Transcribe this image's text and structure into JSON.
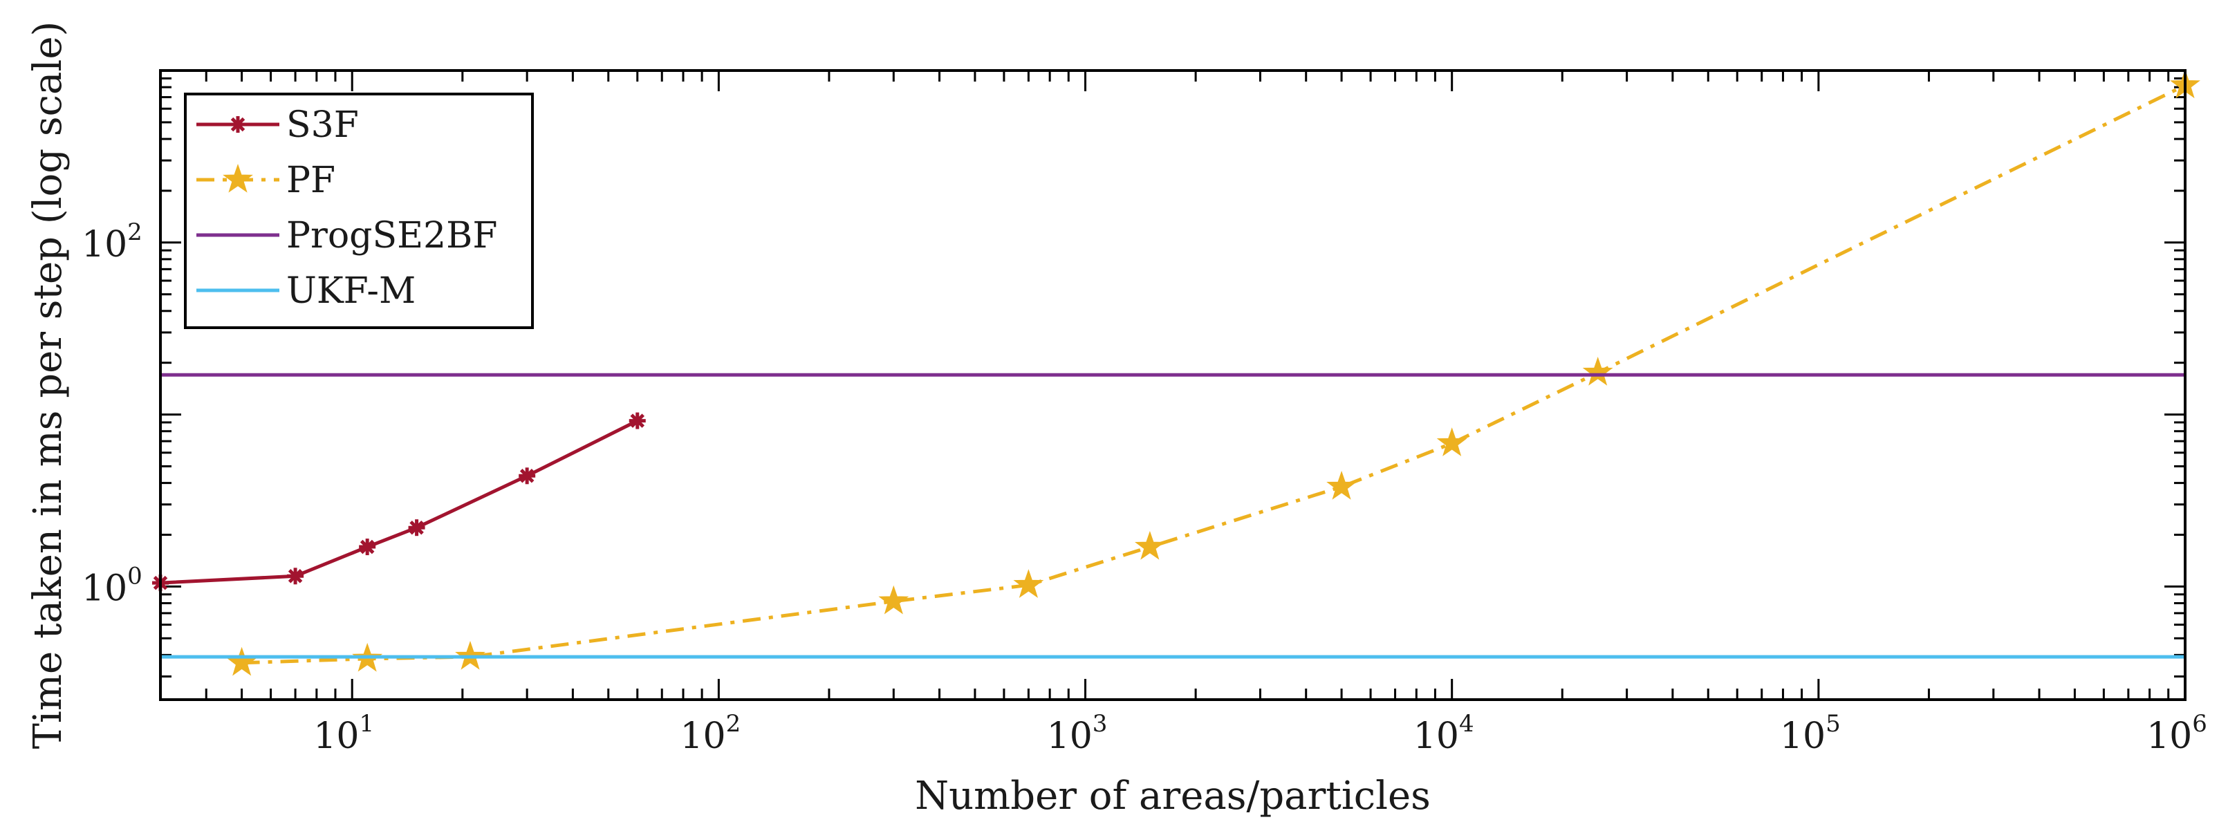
{
  "chart_data": {
    "type": "line",
    "xlabel": "Number of areas/particles",
    "ylabel": "Time taken in ms per step (log scale)",
    "xscale": "log",
    "yscale": "log",
    "xlim": [
      3,
      1000000
    ],
    "ylim": [
      0.22,
      1000
    ],
    "x_ticks": [
      {
        "base": "10",
        "exp": "1",
        "value": 10
      },
      {
        "base": "10",
        "exp": "2",
        "value": 100
      },
      {
        "base": "10",
        "exp": "3",
        "value": 1000
      },
      {
        "base": "10",
        "exp": "4",
        "value": 10000
      },
      {
        "base": "10",
        "exp": "5",
        "value": 100000
      },
      {
        "base": "10",
        "exp": "6",
        "value": 1000000
      }
    ],
    "y_ticks": [
      {
        "base": "10",
        "exp": "0",
        "value": 1
      },
      {
        "base": "10",
        "exp": "2",
        "value": 100
      }
    ],
    "legend_position": "top-left",
    "series": [
      {
        "name": "S3F",
        "color": "#A2142F",
        "style": "solid",
        "marker": "asterisk",
        "x": [
          3,
          7,
          11,
          15,
          30,
          60
        ],
        "y": [
          1.05,
          1.15,
          1.7,
          2.2,
          4.4,
          9.2
        ]
      },
      {
        "name": "PF",
        "color": "#EDB120",
        "style": "dashdot",
        "marker": "star",
        "x": [
          5,
          11,
          21,
          300,
          700,
          1500,
          5000,
          10000,
          25000,
          1000000
        ],
        "y": [
          0.36,
          0.38,
          0.39,
          0.82,
          1.02,
          1.7,
          3.8,
          6.8,
          17.5,
          820
        ]
      },
      {
        "name": "ProgSE2BF",
        "color": "#7E2F8E",
        "style": "solid",
        "marker": "none",
        "constant": 17.0
      },
      {
        "name": "UKF-M",
        "color": "#4DBEEE",
        "style": "solid",
        "marker": "none",
        "constant": 0.39
      }
    ]
  }
}
